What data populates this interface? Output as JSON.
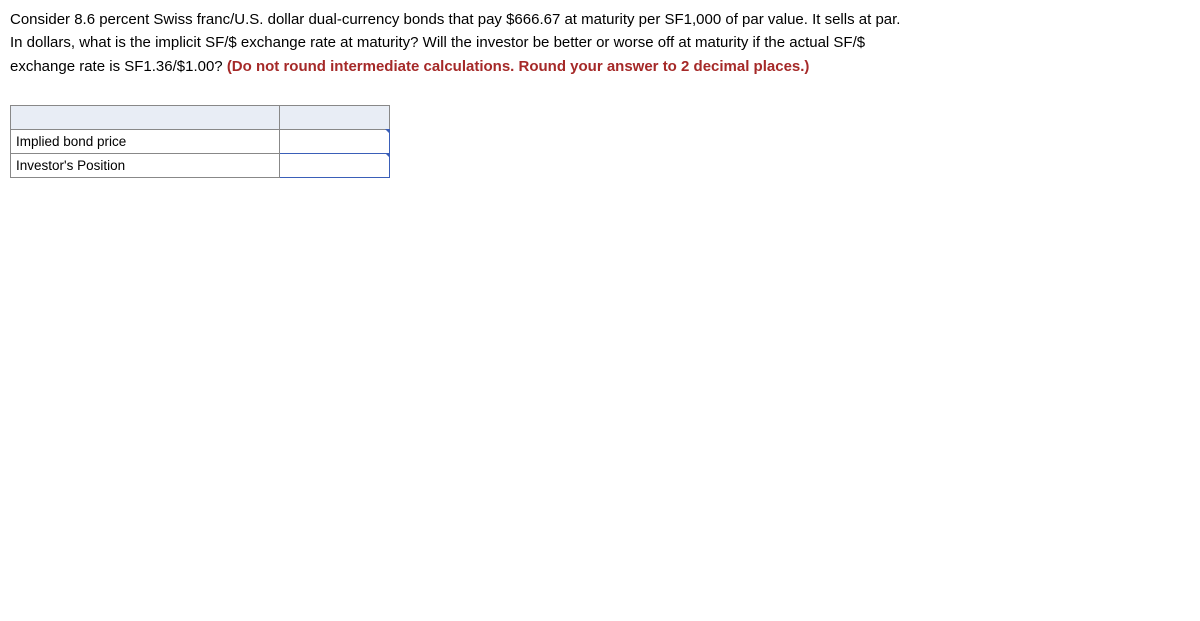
{
  "question": {
    "line1": "Consider 8.6 percent Swiss franc/U.S. dollar dual-currency bonds that pay $666.67 at maturity per SF1,000 of par value. It sells at par.",
    "line2": "In dollars, what is the implicit SF/$ exchange rate at maturity? Will the investor be better or worse off at maturity if the actual SF/$",
    "line3_prefix": "exchange rate is SF1.36/$1.00? ",
    "instruction": "(Do not round intermediate calculations. Round your answer to 2 decimal places.)"
  },
  "table": {
    "rows": [
      {
        "label": "Implied bond price",
        "value": ""
      },
      {
        "label": "Investor's Position",
        "value": ""
      }
    ]
  },
  "colors": {
    "text": "#000000",
    "instruction": "#a52928",
    "table_border": "#888888",
    "header_bg": "#e8edf5",
    "input_border": "#3a5fb8",
    "background": "#ffffff"
  }
}
